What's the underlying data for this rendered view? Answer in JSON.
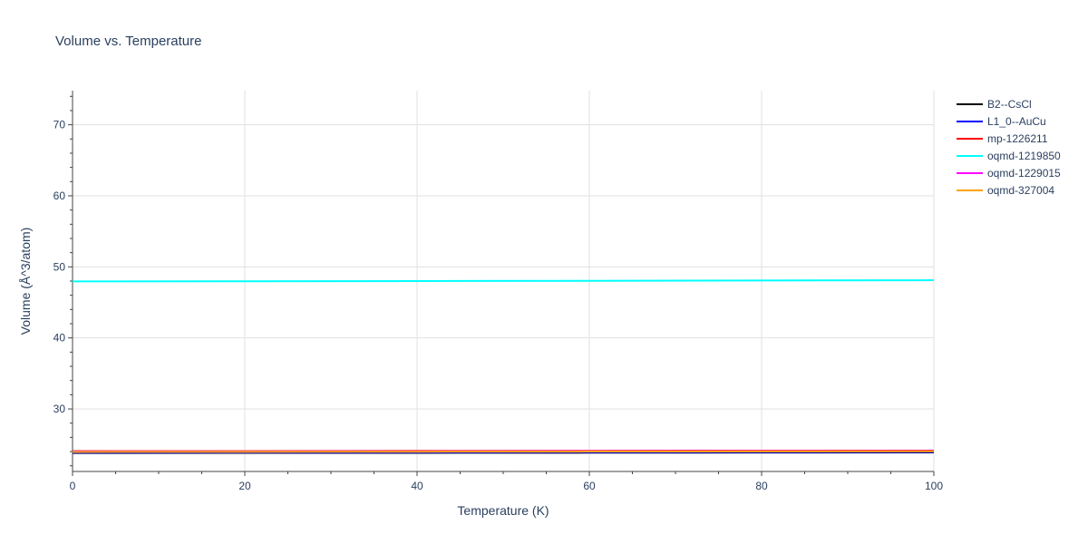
{
  "chart_data": {
    "type": "line",
    "title": "Volume vs. Temperature",
    "xlabel": "Temperature (K)",
    "ylabel": "Volume (Å^3/atom)",
    "xlim": [
      0,
      100
    ],
    "ylim": [
      21.2,
      74.8
    ],
    "x_ticks": [
      0,
      20,
      40,
      60,
      80,
      100
    ],
    "y_ticks": [
      30,
      40,
      50,
      60,
      70
    ],
    "grid": true,
    "legend_position": "top-right, outside plot",
    "x": [
      0,
      20,
      40,
      60,
      80,
      100
    ],
    "series": [
      {
        "name": "B2--CsCl",
        "color": "#000000",
        "values": [
          23.8,
          23.81,
          23.82,
          23.84,
          23.86,
          23.88
        ]
      },
      {
        "name": "L1_0--AuCu",
        "color": "#0000ff",
        "values": [
          23.85,
          23.86,
          23.87,
          23.89,
          23.91,
          23.93
        ]
      },
      {
        "name": "mp-1226211",
        "color": "#ff0000",
        "values": [
          24.05,
          24.06,
          24.08,
          24.1,
          24.12,
          24.14
        ]
      },
      {
        "name": "oqmd-1219850",
        "color": "#00ffff",
        "values": [
          47.95,
          47.97,
          48.0,
          48.04,
          48.08,
          48.12
        ]
      },
      {
        "name": "oqmd-1229015",
        "color": "#ff00ff",
        "values": [
          24.0,
          24.01,
          24.03,
          24.05,
          24.07,
          24.09
        ]
      },
      {
        "name": "oqmd-327004",
        "color": "#ffa500",
        "values": [
          23.95,
          23.96,
          23.98,
          24.0,
          24.02,
          24.04
        ]
      }
    ]
  }
}
